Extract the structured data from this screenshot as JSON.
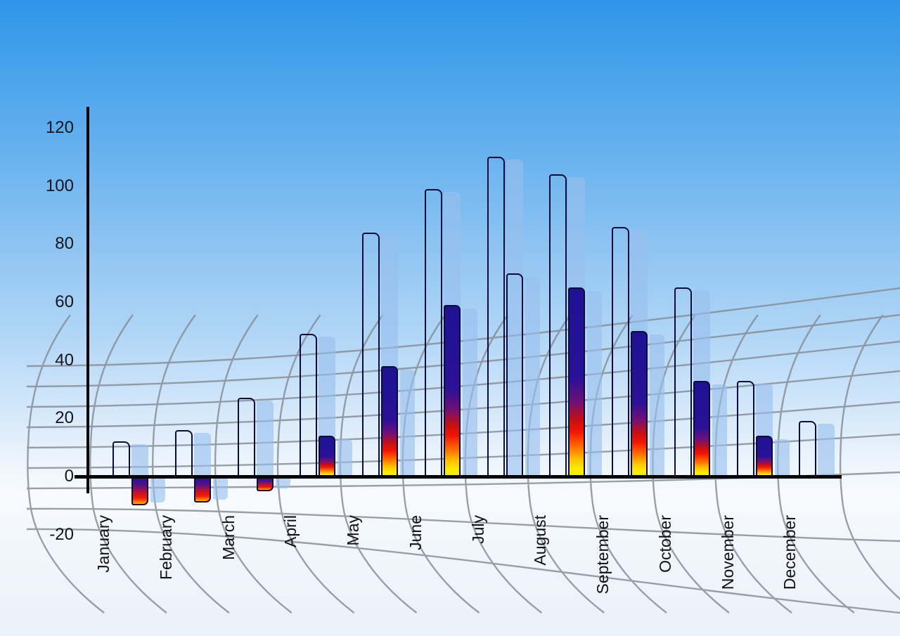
{
  "chart_data": {
    "type": "bar",
    "title": "",
    "xlabel": "",
    "ylabel": "",
    "categories": [
      "January",
      "February",
      "March",
      "April",
      "May",
      "June",
      "July",
      "August",
      "September",
      "October",
      "November",
      "December"
    ],
    "series": [
      {
        "name": "blue-series",
        "values": [
          12,
          16,
          27,
          49,
          84,
          99,
          110,
          104,
          86,
          65,
          33,
          19
        ]
      },
      {
        "name": "heat-series",
        "values": [
          -10,
          -9,
          -5,
          14,
          38,
          59,
          70,
          65,
          50,
          33,
          14,
          0
        ],
        "style_overrides": {
          "6": "blue-gradient",
          "11": "no-bar"
        }
      }
    ],
    "yticks": [
      {
        "label": "120",
        "v": 120
      },
      {
        "label": "100",
        "v": 100
      },
      {
        "label": "80",
        "v": 80
      },
      {
        "label": "60",
        "v": 60
      },
      {
        "label": "40",
        "v": 40
      },
      {
        "label": "20",
        "v": 20
      },
      {
        "label": "0",
        "v": 0
      },
      {
        "label": "-20",
        "v": -20
      }
    ],
    "ylim": [
      -20,
      120
    ],
    "legend": "none",
    "grid": "curved-perspective-net",
    "colors": {
      "background_top": "#2f95e8",
      "background_bottom": "#eaf1f9",
      "bar_blue_top": "#1487e4",
      "bar_blue_bottom": "#ffffff",
      "heat_navy": "#1e1293",
      "heat_red": "#f01505",
      "heat_yellow": "#f5ee00",
      "shadow_slab": "#97bfee",
      "grid_line": "#858c94",
      "axis": "#050508",
      "label_text": "#14141c"
    }
  }
}
